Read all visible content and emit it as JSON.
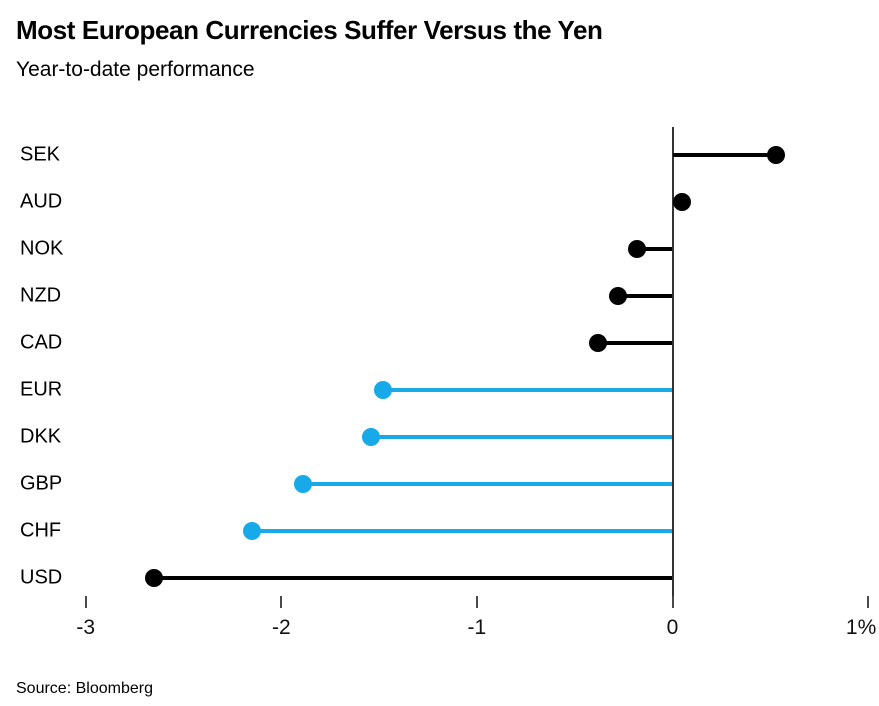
{
  "header": {
    "title": "Most European Currencies Suffer Versus the Yen",
    "subtitle": "Year-to-date performance"
  },
  "footer": {
    "source": "Source: Bloomberg"
  },
  "colors": {
    "black": "#000000",
    "blue": "#18a9e8",
    "axis": "#333333",
    "tick": "#4a4a4a"
  },
  "chart_data": {
    "type": "bar",
    "variant": "horizontal-lollipop",
    "title": "Most European Currencies Suffer Versus the Yen",
    "subtitle": "Year-to-date performance",
    "categories": [
      "SEK",
      "AUD",
      "NOK",
      "NZD",
      "CAD",
      "EUR",
      "DKK",
      "GBP",
      "CHF",
      "USD"
    ],
    "values": [
      0.53,
      0.05,
      -0.18,
      -0.28,
      -0.38,
      -1.48,
      -1.54,
      -1.89,
      -2.15,
      -2.65
    ],
    "series_colors": [
      "black",
      "black",
      "black",
      "black",
      "black",
      "blue",
      "blue",
      "blue",
      "blue",
      "black"
    ],
    "xlabel": "",
    "ylabel": "",
    "unit": "%",
    "baseline": 0,
    "xlim": [
      -3.35,
      1.05
    ],
    "x_ticks": [
      -3,
      -2,
      -1,
      0,
      1
    ],
    "x_tick_labels": [
      "-3",
      "-2",
      "-1",
      "0",
      "1%"
    ],
    "grid": false,
    "legend": "none",
    "source": "Source: Bloomberg"
  }
}
